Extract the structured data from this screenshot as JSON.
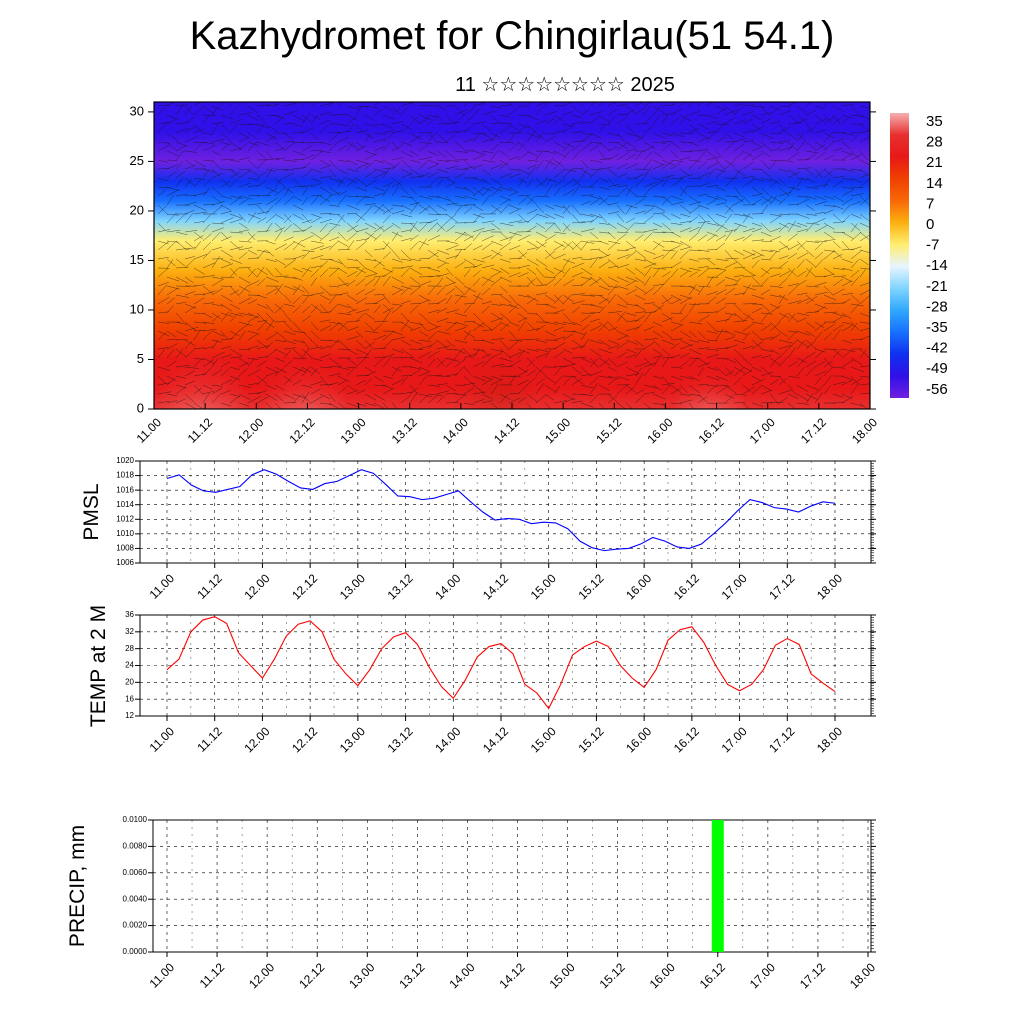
{
  "title": "Kazhydromet for Chingirlau(51 54.1)",
  "subtitle": "11 ☆☆☆☆☆☆☆☆ 2025",
  "time_labels": [
    "11.00",
    "11.12",
    "12.00",
    "12.12",
    "13.00",
    "13.12",
    "14.00",
    "14.12",
    "15.00",
    "15.12",
    "16.00",
    "16.12",
    "17.00",
    "17.12",
    "18.00"
  ],
  "colors": {
    "pmsl_line": "#0000ff",
    "temp_line": "#ff0000",
    "precip_bar": "#00ff00",
    "grid": "#000000"
  },
  "chart_data": [
    {
      "type": "heatmap",
      "name": "temperature-wind-cross-section",
      "x_labels": [
        "11.00",
        "11.12",
        "12.00",
        "12.12",
        "13.00",
        "13.12",
        "14.00",
        "14.12",
        "15.00",
        "15.12",
        "16.00",
        "16.12",
        "17.00",
        "17.12",
        "18.00"
      ],
      "yticks": [
        0,
        5,
        10,
        15,
        20,
        25,
        30
      ],
      "ylim": [
        0,
        31
      ],
      "colorbar_labels": [
        "35",
        "28",
        "21",
        "14",
        "7",
        "0",
        "-7",
        "-14",
        "-21",
        "-28",
        "-35",
        "-42",
        "-49",
        "-56"
      ],
      "colorbar_colors": [
        "#f5b0b0",
        "#e83030",
        "#e81818",
        "#f04000",
        "#f86808",
        "#fcb010",
        "#ffee70",
        "#e8f4ff",
        "#80d4ff",
        "#30a8ff",
        "#1870ff",
        "#1030f0",
        "#3010e8",
        "#7020e0"
      ],
      "profile_levels": [
        0,
        2,
        5,
        8,
        11,
        14,
        17,
        19,
        21,
        23,
        25,
        28,
        31
      ],
      "profile_temps": [
        30,
        24,
        20,
        14,
        9,
        2,
        -8,
        -20,
        -33,
        -45,
        -54,
        -52,
        -50
      ]
    },
    {
      "type": "line",
      "ylabel": "PMSL",
      "yticks": [
        1006,
        1008,
        1010,
        1012,
        1014,
        1016,
        1018,
        1020
      ],
      "ylim": [
        1006,
        1020
      ],
      "x_labels": [
        "11.00",
        "11.12",
        "12.00",
        "12.12",
        "13.00",
        "13.12",
        "14.00",
        "14.12",
        "15.00",
        "15.12",
        "16.00",
        "16.12",
        "17.00",
        "17.12",
        "18.00"
      ],
      "values": [
        1017.6,
        1018.1,
        1016.7,
        1015.9,
        1015.7,
        1016.1,
        1016.5,
        1018.1,
        1018.8,
        1018.2,
        1017.2,
        1016.3,
        1016.1,
        1016.9,
        1017.2,
        1018.0,
        1018.8,
        1018.3,
        1016.8,
        1015.2,
        1015.1,
        1014.7,
        1014.9,
        1015.4,
        1015.9,
        1014.4,
        1013.0,
        1011.9,
        1012.1,
        1012.0,
        1011.4,
        1011.6,
        1011.5,
        1010.7,
        1009.0,
        1008.1,
        1007.7,
        1007.9,
        1008.0,
        1008.6,
        1009.5,
        1009.0,
        1008.2,
        1008.0,
        1008.6,
        1010.0,
        1011.5,
        1013.2,
        1014.7,
        1014.3,
        1013.6,
        1013.4,
        1013.0,
        1013.8,
        1014.4,
        1014.2
      ]
    },
    {
      "type": "line",
      "ylabel": "TEMP at 2 M",
      "yticks": [
        12,
        16,
        20,
        24,
        28,
        32,
        36
      ],
      "ylim": [
        12,
        36
      ],
      "x_labels": [
        "11.00",
        "11.12",
        "12.00",
        "12.12",
        "13.00",
        "13.12",
        "14.00",
        "14.12",
        "15.00",
        "15.12",
        "16.00",
        "16.12",
        "17.00",
        "17.12",
        "18.00"
      ],
      "values": [
        23.0,
        25.5,
        32.0,
        34.8,
        35.6,
        34.0,
        27.0,
        24.0,
        21.0,
        25.5,
        31.0,
        33.8,
        34.6,
        32.0,
        25.5,
        22.0,
        19.2,
        23.0,
        28.0,
        30.8,
        31.8,
        29.0,
        23.5,
        19.0,
        16.2,
        20.5,
        26.0,
        28.5,
        29.2,
        26.8,
        19.5,
        17.5,
        13.8,
        19.5,
        26.5,
        28.5,
        29.8,
        28.5,
        24.0,
        21.0,
        18.8,
        23.0,
        30.0,
        32.5,
        33.2,
        29.5,
        24.0,
        19.5,
        18.0,
        19.5,
        23.0,
        28.8,
        30.4,
        29.0,
        22.0,
        19.8,
        17.8
      ]
    },
    {
      "type": "bar",
      "ylabel": "PRECIP, mm",
      "yticks": [
        "0.0000",
        "0.0020",
        "0.0040",
        "0.0060",
        "0.0080",
        "0.0100"
      ],
      "ylim": [
        0,
        0.01
      ],
      "x_labels": [
        "11.00",
        "11.12",
        "12.00",
        "12.12",
        "13.00",
        "13.12",
        "14.00",
        "14.12",
        "15.00",
        "15.12",
        "16.00",
        "16.12",
        "17.00",
        "17.12",
        "18.00"
      ],
      "bars": [
        {
          "time": "16.12",
          "value": 0.01
        }
      ]
    }
  ]
}
